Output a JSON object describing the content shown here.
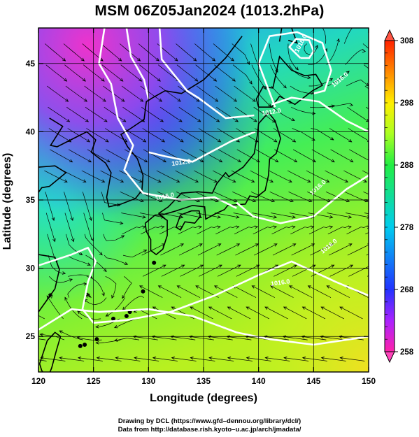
{
  "title": "MSM 06Z05Jan2024 (1013.2hPa)",
  "axes": {
    "xlabel": "Longitude (degrees)",
    "ylabel": "Latitude  (degrees)",
    "xticks": [
      "120",
      "125",
      "130",
      "135",
      "140",
      "145",
      "150"
    ],
    "yticks": [
      "25",
      "30",
      "35",
      "40",
      "45"
    ],
    "xlim": [
      120,
      150
    ],
    "ylim": [
      22.4,
      47.6
    ]
  },
  "colorbar": {
    "labels": [
      "308",
      "298",
      "288",
      "278",
      "268",
      "258"
    ],
    "range": [
      258,
      308
    ],
    "stops": [
      "#ff22aa",
      "#aa22ff",
      "#2233ff",
      "#00ccee",
      "#22ee44",
      "#aaff22",
      "#ffee00",
      "#ff8800",
      "#ff2200"
    ]
  },
  "isobars": {
    "color": "#ffffff",
    "labels": [
      "1016.0",
      "1012.0",
      "1016.0",
      "1012.0",
      "1016.0",
      "1016.0",
      "1016.0",
      "1016.0"
    ]
  },
  "credits": {
    "line1": "Drawing by DCL (https://www.gfd–dennou.org/library/dcl/)",
    "line2": "Data from http://database.rish.kyoto–u.ac.jp/arch/jmadata/"
  }
}
